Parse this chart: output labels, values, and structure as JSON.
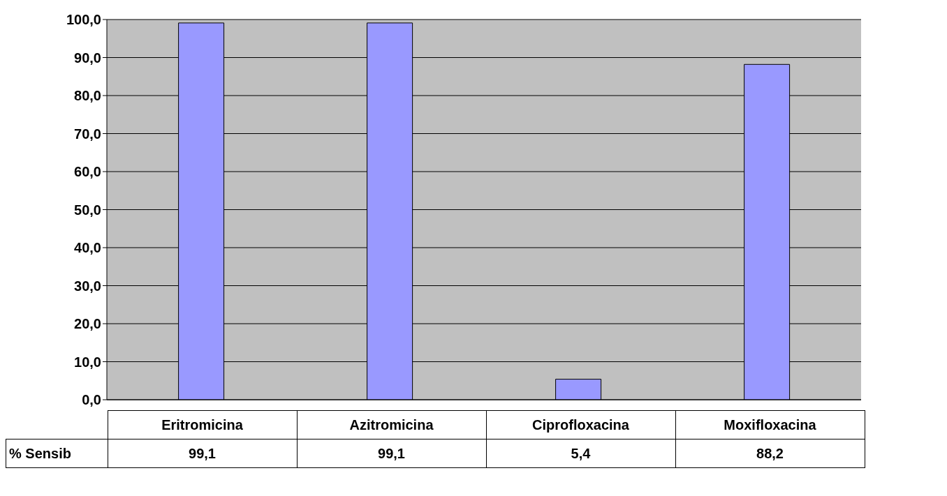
{
  "chart_data": {
    "type": "bar",
    "categories": [
      "Eritromicina",
      "Azitromicina",
      "Ciprofloxacina",
      "Moxifloxacina"
    ],
    "series": [
      {
        "name": "% Sensib",
        "color": "#9999ff",
        "values": [
          99.1,
          99.1,
          5.4,
          88.2
        ],
        "value_labels": [
          "99,1",
          "99,1",
          "5,4",
          "88,2"
        ]
      }
    ],
    "ylim": [
      0,
      100
    ],
    "yticks": [
      {
        "value": 0,
        "label": "0,0"
      },
      {
        "value": 10,
        "label": "10,0"
      },
      {
        "value": 20,
        "label": "20,0"
      },
      {
        "value": 30,
        "label": "30,0"
      },
      {
        "value": 40,
        "label": "40,0"
      },
      {
        "value": 50,
        "label": "50,0"
      },
      {
        "value": 60,
        "label": "60,0"
      },
      {
        "value": 70,
        "label": "70,0"
      },
      {
        "value": 80,
        "label": "80,0"
      },
      {
        "value": 90,
        "label": "90,0"
      },
      {
        "value": 100,
        "label": "100,0"
      }
    ],
    "grid": "y"
  }
}
